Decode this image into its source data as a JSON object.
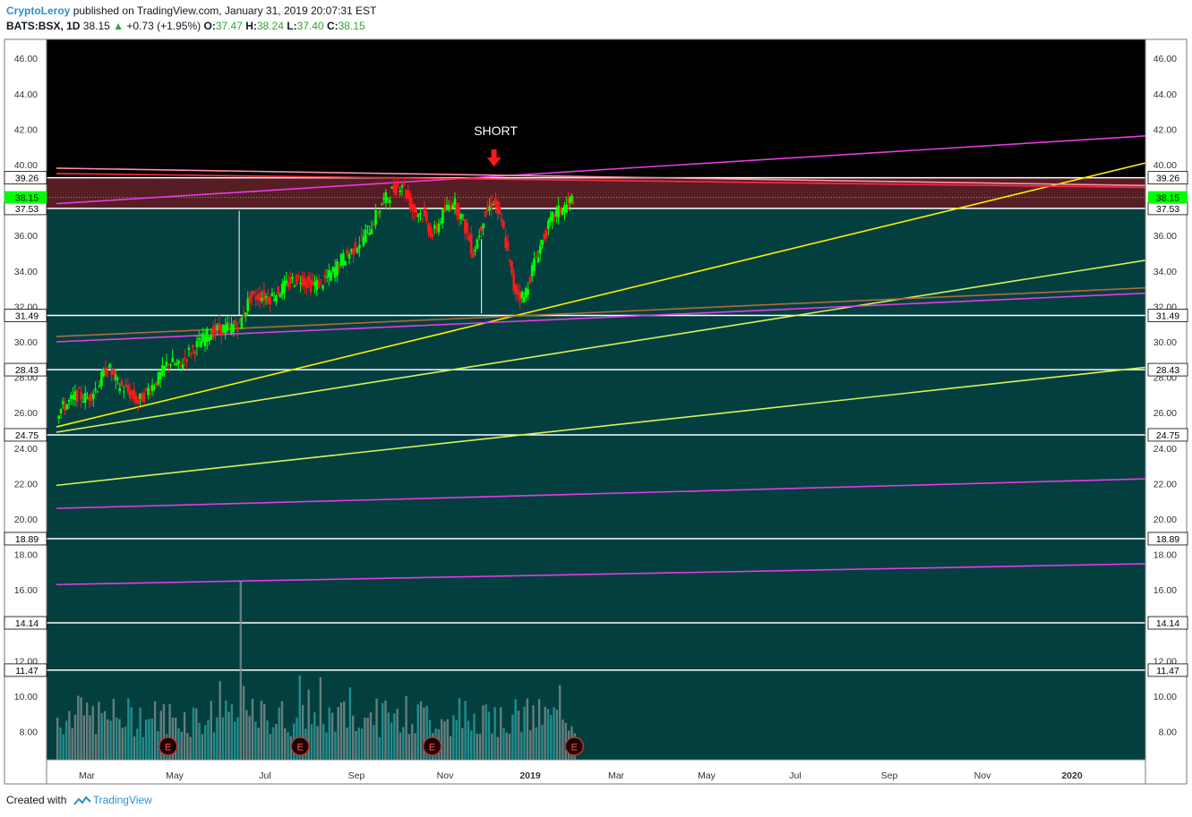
{
  "header": {
    "author": "CryptoLeroy",
    "published_text": "published on TradingView.com, January 31, 2019 20:07:31 EST",
    "symbol": "BATS:BSX, 1D",
    "last": "38.15",
    "change": "+0.73 (+1.95%)",
    "o_label": "O:",
    "o_val": "37.47",
    "h_label": "H:",
    "h_val": "38.24",
    "l_label": "L:",
    "l_val": "37.40",
    "c_label": "C:",
    "c_val": "38.15"
  },
  "footer": {
    "created_with": "Created with",
    "brand": "TradingView"
  },
  "annotation": {
    "label": "SHORT"
  },
  "colors": {
    "chart_bg": "#000000",
    "band_bg": "#033f3f",
    "resistance": "#5c1f27",
    "up": "#00ff00",
    "down": "#ff1a1a",
    "magenta": "#e63be6",
    "yellow": "#ffee00",
    "green_yellow": "#d6f25a",
    "brown": "#b06a3c",
    "h_line": "#ffffff",
    "last_badge": "#00ff00"
  },
  "chart_data": {
    "type": "candlestick",
    "symbol": "BATS:BSX",
    "interval": "1D",
    "x_ticks": [
      "Mar",
      "May",
      "Jul",
      "Sep",
      "Nov",
      "2019",
      "Mar",
      "May",
      "Jul",
      "Sep",
      "Nov",
      "2020"
    ],
    "y_ticks": [
      "46.00",
      "44.00",
      "42.00",
      "40.00",
      "38.00",
      "36.00",
      "34.00",
      "32.00",
      "30.00",
      "28.00",
      "26.00",
      "24.00",
      "22.00",
      "20.00",
      "18.00",
      "16.00",
      "12.00",
      "10.00",
      "8.00"
    ],
    "ylim": [
      6.0,
      47.2
    ],
    "last_price": 38.15,
    "horizontal_levels": [
      39.26,
      37.53,
      31.49,
      28.43,
      24.75,
      18.89,
      14.14,
      11.47
    ],
    "resistance_zone": [
      37.53,
      39.26
    ],
    "trendlines": [
      {
        "color": "magenta",
        "from": [
          "2018-02-08",
          37.8
        ],
        "to": [
          "2020-03-15",
          41.7
        ]
      },
      {
        "color": "yellow",
        "from": [
          "2018-02-08",
          25.2
        ],
        "to": [
          "2020-03-15",
          40.4
        ]
      },
      {
        "color": "green_yellow",
        "from": [
          "2018-02-08",
          24.9
        ],
        "to": [
          "2020-03-15",
          34.8
        ]
      },
      {
        "color": "green_yellow",
        "from": [
          "2018-02-08",
          21.9
        ],
        "to": [
          "2020-03-15",
          28.7
        ]
      },
      {
        "color": "magenta",
        "from": [
          "2018-02-08",
          30.0
        ],
        "to": [
          "2020-03-15",
          32.8
        ]
      },
      {
        "color": "brown",
        "from": [
          "2018-02-08",
          30.3
        ],
        "to": [
          "2020-03-15",
          33.1
        ]
      },
      {
        "color": "magenta",
        "from": [
          "2018-02-08",
          20.6
        ],
        "to": [
          "2020-03-15",
          22.3
        ]
      },
      {
        "color": "magenta",
        "from": [
          "2018-02-08",
          16.3
        ],
        "to": [
          "2020-03-15",
          17.5
        ]
      },
      {
        "color": "pink",
        "from": [
          "2018-02-08",
          39.8
        ],
        "to": [
          "2020-03-15",
          38.8
        ]
      },
      {
        "color": "red",
        "from": [
          "2018-02-08",
          39.5
        ],
        "to": [
          "2020-03-15",
          38.7
        ]
      }
    ],
    "earnings_markers": [
      {
        "date": "2018-04-26",
        "label": "E"
      },
      {
        "date": "2018-07-26",
        "label": "E"
      },
      {
        "date": "2018-10-25",
        "label": "E"
      },
      {
        "date": "2019-01-31",
        "label": "E"
      }
    ],
    "closes": [
      {
        "d": "2018-02-09",
        "c": 26.0
      },
      {
        "d": "2018-02-16",
        "c": 26.5
      },
      {
        "d": "2018-02-23",
        "c": 27.0
      },
      {
        "d": "2018-03-02",
        "c": 26.8
      },
      {
        "d": "2018-03-09",
        "c": 27.5
      },
      {
        "d": "2018-03-16",
        "c": 28.6
      },
      {
        "d": "2018-03-23",
        "c": 27.6
      },
      {
        "d": "2018-03-30",
        "c": 27.2
      },
      {
        "d": "2018-04-06",
        "c": 26.6
      },
      {
        "d": "2018-04-13",
        "c": 27.3
      },
      {
        "d": "2018-04-20",
        "c": 27.9
      },
      {
        "d": "2018-04-27",
        "c": 28.9
      },
      {
        "d": "2018-05-04",
        "c": 28.6
      },
      {
        "d": "2018-05-11",
        "c": 29.4
      },
      {
        "d": "2018-05-18",
        "c": 29.9
      },
      {
        "d": "2018-05-25",
        "c": 30.5
      },
      {
        "d": "2018-06-01",
        "c": 30.7
      },
      {
        "d": "2018-06-08",
        "c": 30.8
      },
      {
        "d": "2018-06-15",
        "c": 31.0
      },
      {
        "d": "2018-06-22",
        "c": 32.5
      },
      {
        "d": "2018-06-29",
        "c": 32.6
      },
      {
        "d": "2018-07-06",
        "c": 32.5
      },
      {
        "d": "2018-07-13",
        "c": 32.9
      },
      {
        "d": "2018-07-20",
        "c": 33.4
      },
      {
        "d": "2018-07-27",
        "c": 33.6
      },
      {
        "d": "2018-08-03",
        "c": 33.2
      },
      {
        "d": "2018-08-10",
        "c": 33.3
      },
      {
        "d": "2018-08-17",
        "c": 33.8
      },
      {
        "d": "2018-08-24",
        "c": 34.6
      },
      {
        "d": "2018-08-31",
        "c": 35.1
      },
      {
        "d": "2018-09-07",
        "c": 35.8
      },
      {
        "d": "2018-09-14",
        "c": 36.6
      },
      {
        "d": "2018-09-21",
        "c": 37.8
      },
      {
        "d": "2018-09-28",
        "c": 38.5
      },
      {
        "d": "2018-10-05",
        "c": 39.0
      },
      {
        "d": "2018-10-12",
        "c": 37.5
      },
      {
        "d": "2018-10-19",
        "c": 37.2
      },
      {
        "d": "2018-10-26",
        "c": 36.0
      },
      {
        "d": "2018-11-02",
        "c": 37.2
      },
      {
        "d": "2018-11-09",
        "c": 38.0
      },
      {
        "d": "2018-11-16",
        "c": 36.8
      },
      {
        "d": "2018-11-23",
        "c": 35.0
      },
      {
        "d": "2018-11-30",
        "c": 37.0
      },
      {
        "d": "2018-12-07",
        "c": 38.0
      },
      {
        "d": "2018-12-14",
        "c": 36.2
      },
      {
        "d": "2018-12-21",
        "c": 33.0
      },
      {
        "d": "2018-12-28",
        "c": 32.5
      },
      {
        "d": "2019-01-04",
        "c": 34.5
      },
      {
        "d": "2019-01-11",
        "c": 36.0
      },
      {
        "d": "2019-01-18",
        "c": 37.2
      },
      {
        "d": "2019-01-25",
        "c": 37.6
      },
      {
        "d": "2019-01-31",
        "c": 38.15
      }
    ]
  }
}
